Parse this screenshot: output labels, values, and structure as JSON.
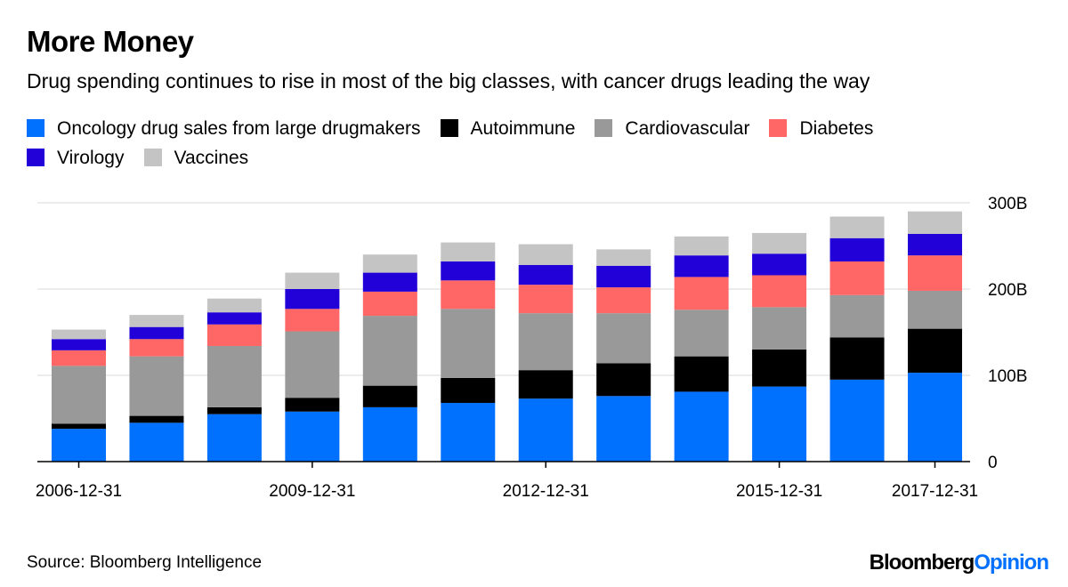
{
  "title": "More Money",
  "subtitle": "Drug spending continues to rise in most of the big classes, with cancer drugs leading the way",
  "source": "Source: Bloomberg Intelligence",
  "logo": {
    "part1": "Bloomberg",
    "part2": "Opinion"
  },
  "chart_data": {
    "type": "bar",
    "stacked": true,
    "categories": [
      "2006-12-31",
      "2007-12-31",
      "2008-12-31",
      "2009-12-31",
      "2010-12-31",
      "2011-12-31",
      "2012-12-31",
      "2013-12-31",
      "2014-12-31",
      "2015-12-31",
      "2016-12-31",
      "2017-12-31"
    ],
    "x_tick_labels": [
      "2006-12-31",
      "2009-12-31",
      "2012-12-31",
      "2015-12-31",
      "2017-12-31"
    ],
    "x_tick_indices": [
      0,
      3,
      6,
      9,
      11
    ],
    "y_ticks": [
      {
        "v": 0,
        "label": "0"
      },
      {
        "v": 100,
        "label": "100B"
      },
      {
        "v": 200,
        "label": "200B"
      },
      {
        "v": 300,
        "label": "300B"
      }
    ],
    "ylim": [
      0,
      300
    ],
    "y_axis_side": "right",
    "grid": true,
    "legend_placement": "top",
    "series": [
      {
        "name": "Oncology drug sales from large drugmakers",
        "color": "#0070ff",
        "values": [
          38,
          45,
          55,
          58,
          63,
          68,
          73,
          76,
          81,
          87,
          95,
          103
        ]
      },
      {
        "name": "Autoimmune",
        "color": "#000000",
        "values": [
          6,
          8,
          8,
          16,
          25,
          29,
          33,
          38,
          41,
          43,
          49,
          51
        ]
      },
      {
        "name": "Cardiovascular",
        "color": "#999999",
        "values": [
          67,
          69,
          71,
          77,
          81,
          80,
          66,
          58,
          54,
          49,
          49,
          44
        ]
      },
      {
        "name": "Diabetes",
        "color": "#ff6666",
        "values": [
          18,
          20,
          25,
          26,
          28,
          33,
          33,
          30,
          38,
          37,
          39,
          41
        ]
      },
      {
        "name": "Virology",
        "color": "#2200d8",
        "values": [
          13,
          14,
          14,
          23,
          22,
          22,
          23,
          25,
          25,
          25,
          27,
          25
        ]
      },
      {
        "name": "Vaccines",
        "color": "#c4c4c4",
        "values": [
          11,
          14,
          16,
          19,
          21,
          22,
          24,
          19,
          22,
          24,
          25,
          26
        ]
      }
    ]
  }
}
